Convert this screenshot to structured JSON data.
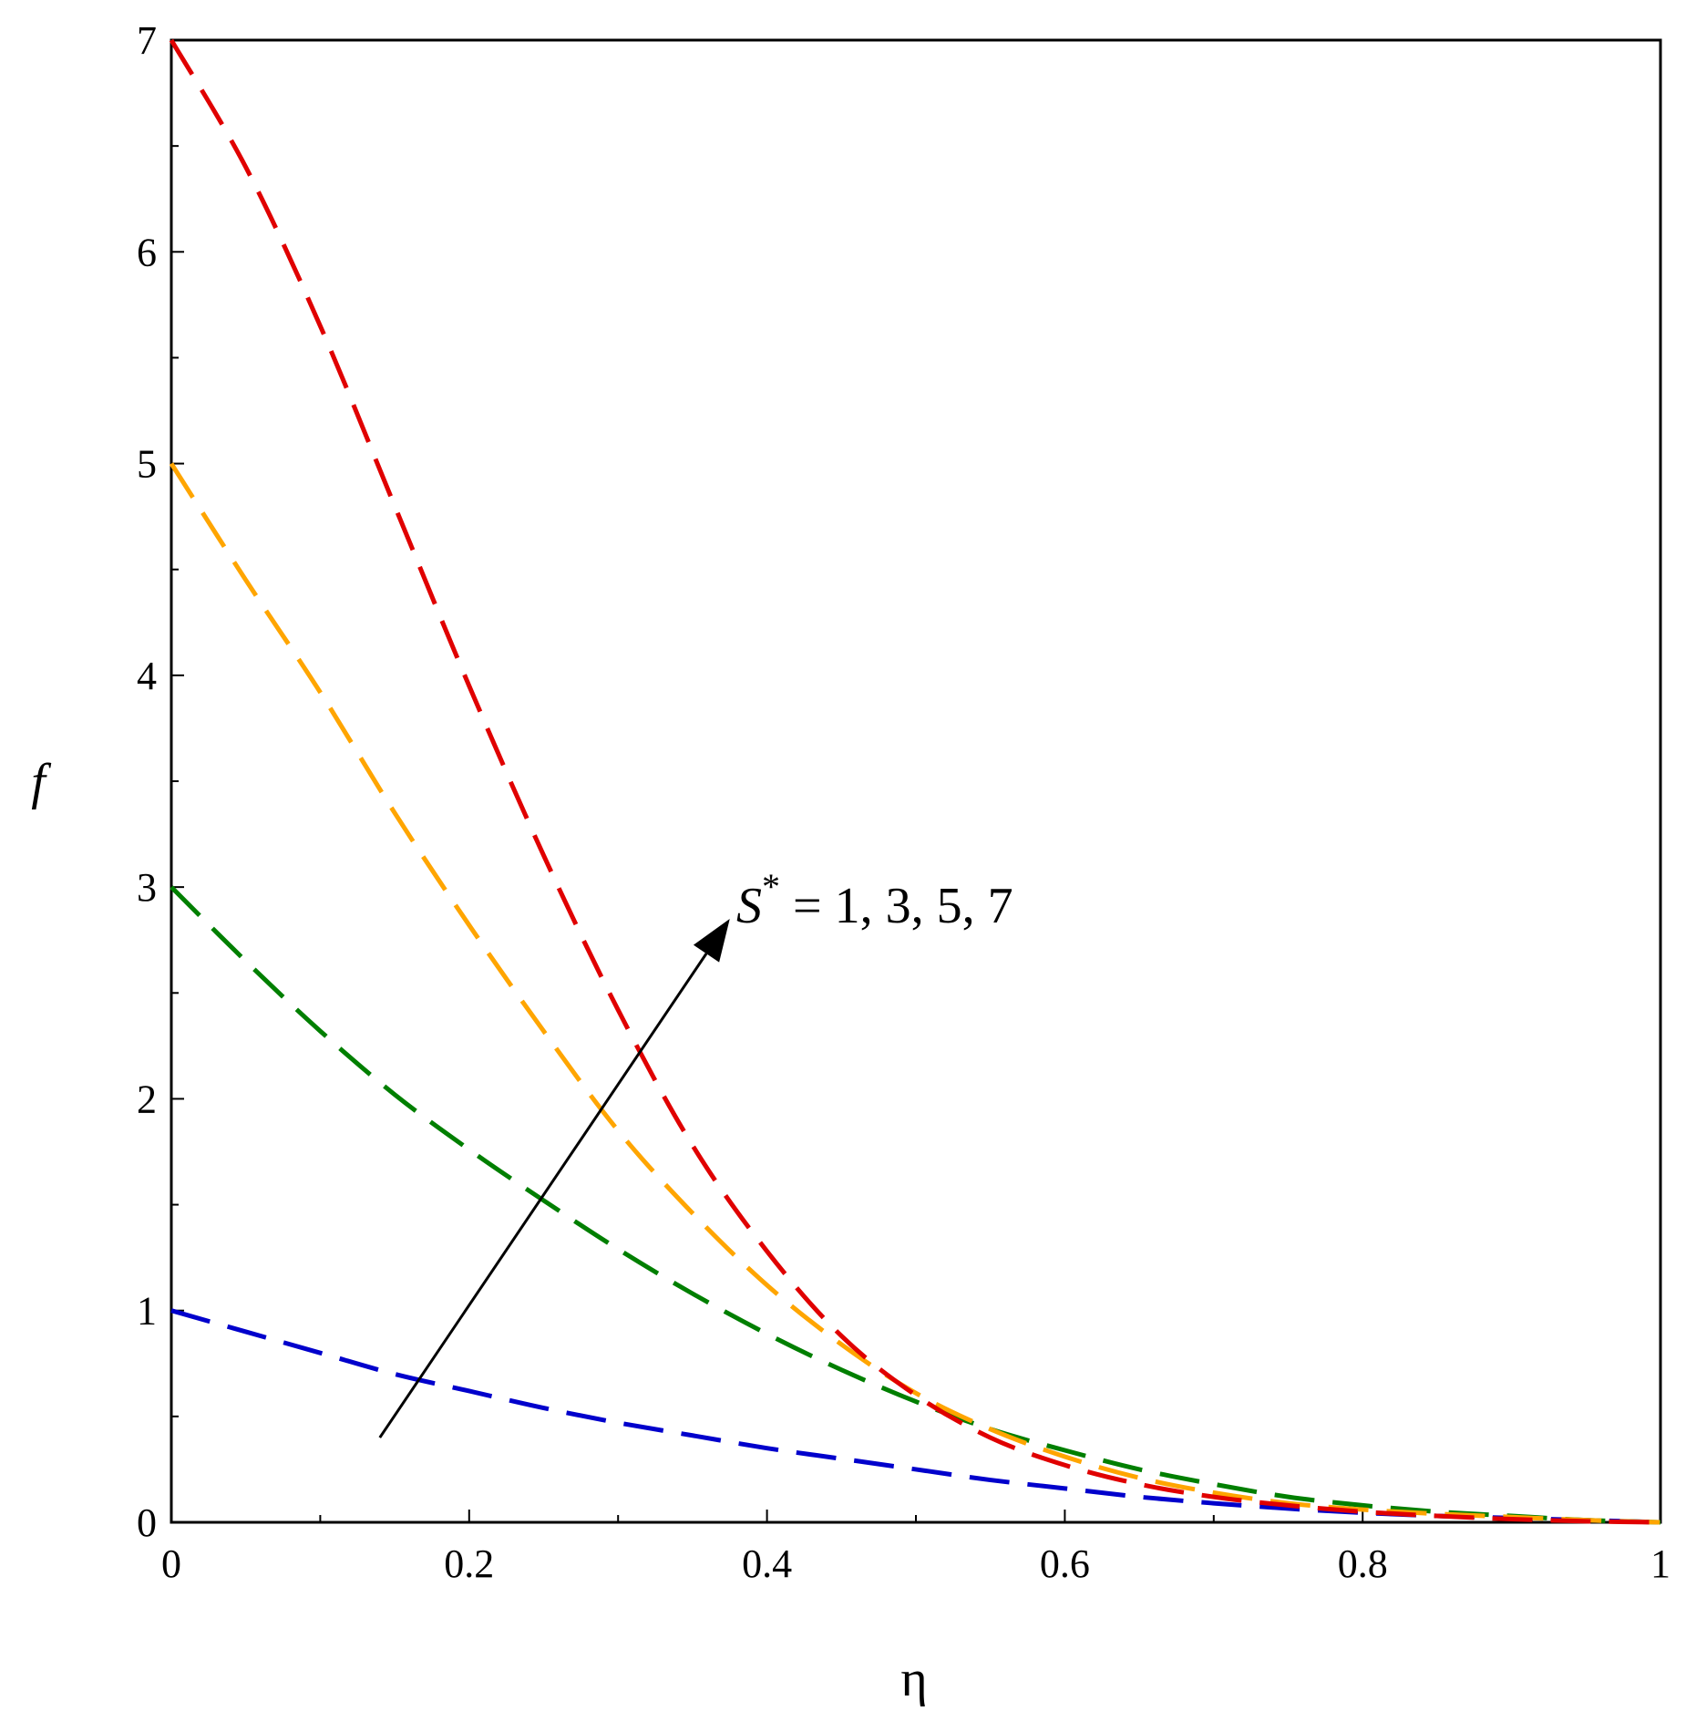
{
  "chart_data": {
    "type": "line",
    "title": "",
    "xlabel": "η",
    "ylabel": "f",
    "xlim": [
      0,
      1
    ],
    "ylim": [
      0,
      7
    ],
    "grid": false,
    "x_ticks": [
      0,
      0.2,
      0.4,
      0.6,
      0.8,
      1
    ],
    "x_tick_labels": [
      "0",
      "0.2",
      "0.4",
      "0.6",
      "0.8",
      "1"
    ],
    "y_ticks": [
      0,
      1,
      2,
      3,
      4,
      5,
      6,
      7
    ],
    "y_tick_labels": [
      "0",
      "1",
      "2",
      "3",
      "4",
      "5",
      "6",
      "7"
    ],
    "x": [
      0,
      0.05,
      0.1,
      0.15,
      0.2,
      0.25,
      0.3,
      0.35,
      0.4,
      0.45,
      0.5,
      0.55,
      0.6,
      0.65,
      0.7,
      0.75,
      0.8,
      0.85,
      0.9,
      0.95,
      1
    ],
    "series": [
      {
        "color": "#0000cc",
        "values": [
          1.0,
          0.9,
          0.8,
          0.7,
          0.62,
          0.54,
          0.47,
          0.41,
          0.35,
          0.3,
          0.25,
          0.2,
          0.16,
          0.12,
          0.09,
          0.065,
          0.045,
          0.03,
          0.02,
          0.01,
          0.0
        ]
      },
      {
        "color": "#007f00",
        "values": [
          3.0,
          2.65,
          2.32,
          2.02,
          1.76,
          1.52,
          1.29,
          1.08,
          0.89,
          0.72,
          0.57,
          0.44,
          0.34,
          0.25,
          0.18,
          0.12,
          0.08,
          0.05,
          0.03,
          0.01,
          0.0
        ]
      },
      {
        "color": "#ffa500",
        "values": [
          5.0,
          4.45,
          3.92,
          3.35,
          2.82,
          2.32,
          1.85,
          1.46,
          1.12,
          0.84,
          0.61,
          0.44,
          0.31,
          0.21,
          0.14,
          0.09,
          0.06,
          0.04,
          0.025,
          0.01,
          0.0
        ]
      },
      {
        "color": "#e00000",
        "values": [
          7.0,
          6.4,
          5.65,
          4.8,
          3.95,
          3.15,
          2.42,
          1.78,
          1.28,
          0.88,
          0.6,
          0.4,
          0.27,
          0.18,
          0.12,
          0.08,
          0.05,
          0.03,
          0.015,
          0.005,
          0.0
        ]
      }
    ],
    "annotation": {
      "symbol": "S",
      "superscript": "*",
      "text": " = 1, 3, 5, 7"
    }
  }
}
